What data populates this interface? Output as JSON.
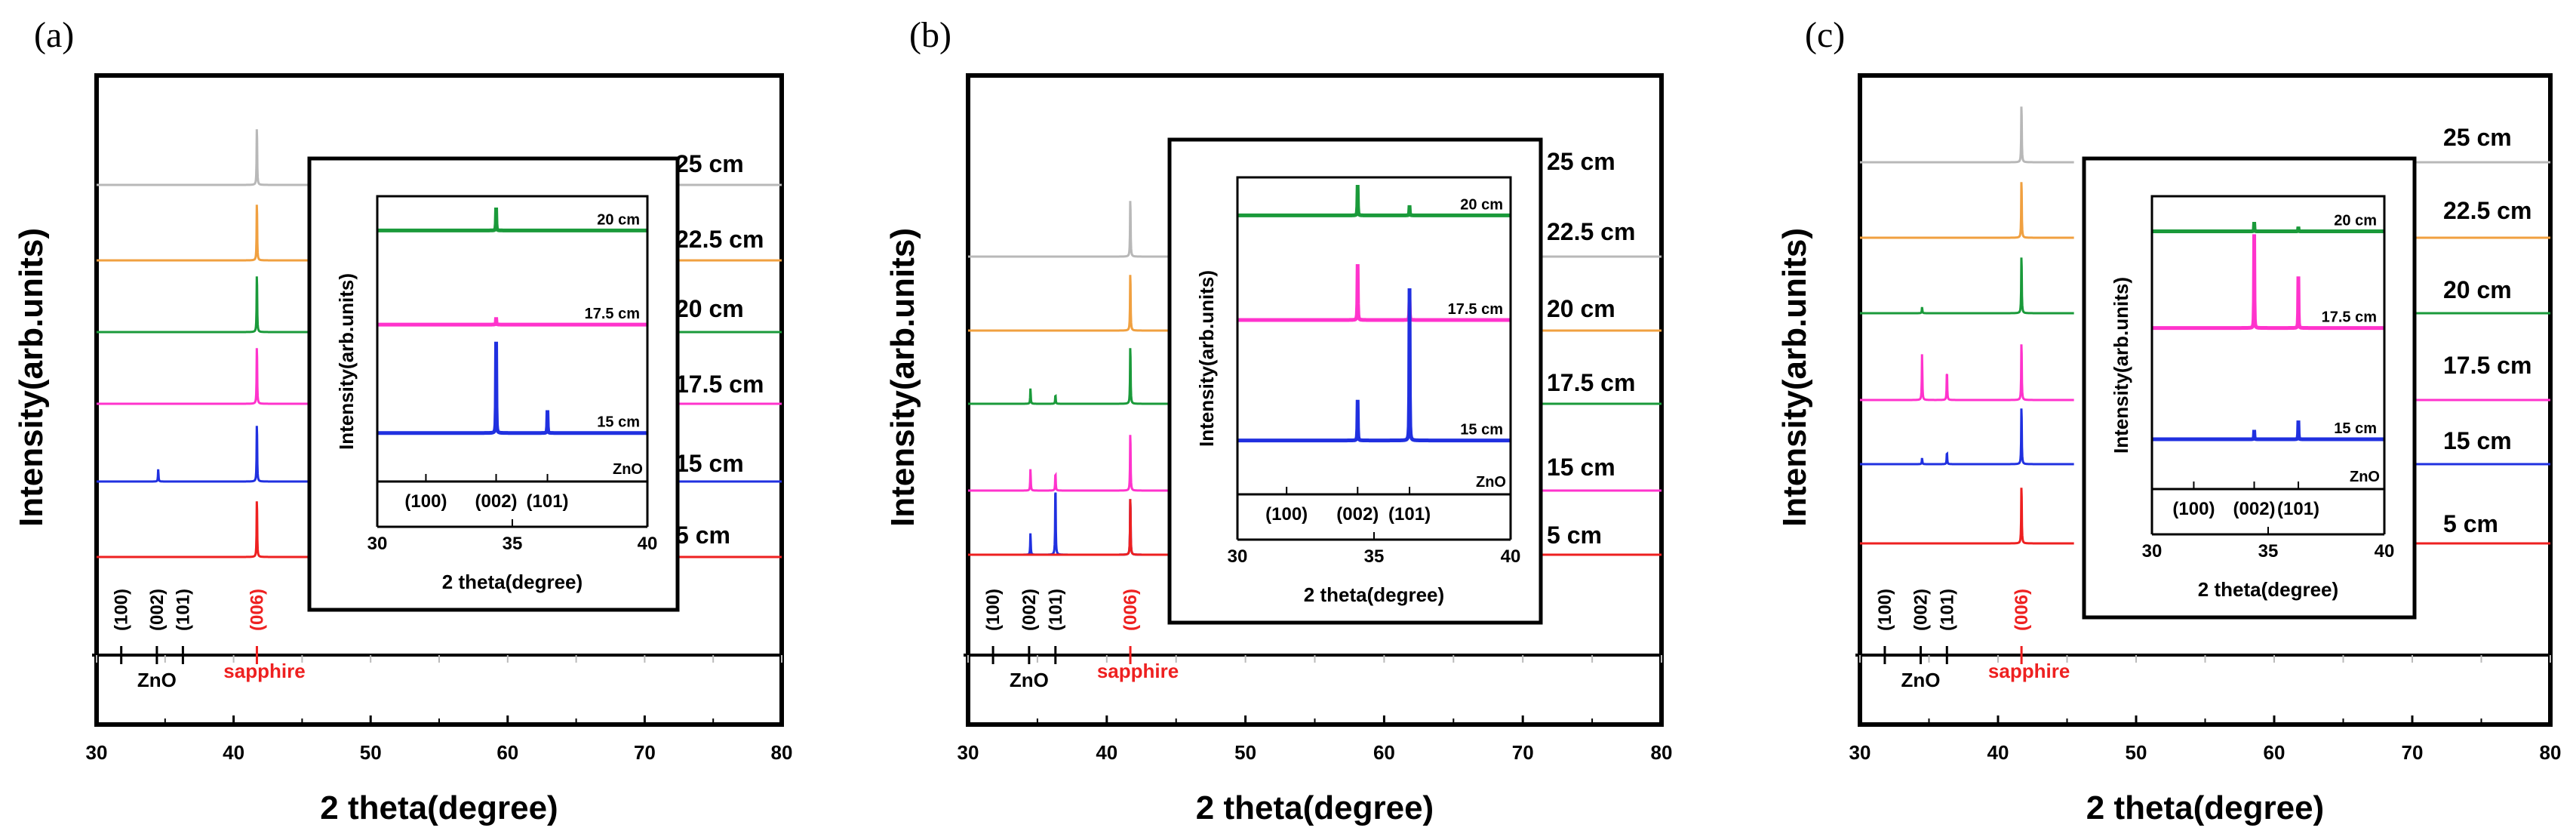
{
  "chart_data": [
    {
      "type": "line",
      "panel_label": "(a)",
      "xlabel": "2 theta(degree)",
      "ylabel": "Intensity(arb.units)",
      "xlim": [
        30,
        80
      ],
      "xticks": [
        "30",
        "40",
        "50",
        "60",
        "70",
        "80"
      ],
      "series": [
        {
          "name": "25  cm",
          "color": "#b8b8b8",
          "peaks": [
            {
              "x": 41.7,
              "h": 1.0
            }
          ]
        },
        {
          "name": "22.5 cm",
          "color": "#f0a040",
          "peaks": [
            {
              "x": 41.7,
              "h": 1.0
            }
          ]
        },
        {
          "name": "20  cm",
          "color": "#1a9a3a",
          "peaks": [
            {
              "x": 41.7,
              "h": 1.0
            }
          ]
        },
        {
          "name": "17.5 cm",
          "color": "#ff33cc",
          "peaks": [
            {
              "x": 41.7,
              "h": 1.0
            }
          ]
        },
        {
          "name": "15  cm",
          "color": "#2030e0",
          "peaks": [
            {
              "x": 34.5,
              "h": 0.2
            },
            {
              "x": 41.7,
              "h": 1.0
            }
          ]
        },
        {
          "name": "5  cm",
          "color": "#ee2020",
          "peaks": [
            {
              "x": 41.7,
              "h": 1.0
            }
          ]
        }
      ],
      "reference": {
        "zno_label": "ZnO",
        "sapphire_label": "sapphire",
        "peaks": [
          {
            "label": "(100)",
            "x": 31.8,
            "material": "ZnO"
          },
          {
            "label": "(002)",
            "x": 34.4,
            "material": "ZnO"
          },
          {
            "label": "(101)",
            "x": 36.3,
            "material": "ZnO"
          },
          {
            "label": "(006)",
            "x": 41.7,
            "material": "sapphire"
          }
        ]
      },
      "inset": {
        "xlabel": "2 theta(degree)",
        "ylabel": "Intensity(arb.units)",
        "xlim": [
          30,
          40
        ],
        "xticks": [
          "30",
          "35",
          "40"
        ],
        "hkl": [
          "(100)",
          "(002)",
          "(101)"
        ],
        "zno_label": "ZnO",
        "series": [
          {
            "name": "20 cm",
            "color": "#1a9a3a",
            "peaks": [
              {
                "x": 34.4,
                "h": 0.25
              }
            ]
          },
          {
            "name": "17.5 cm",
            "color": "#ff33cc",
            "peaks": [
              {
                "x": 34.4,
                "h": 0.08
              }
            ]
          },
          {
            "name": "15 cm",
            "color": "#2030e0",
            "peaks": [
              {
                "x": 34.4,
                "h": 1.0
              },
              {
                "x": 36.3,
                "h": 0.25
              }
            ]
          }
        ]
      }
    },
    {
      "type": "line",
      "panel_label": "(b)",
      "xlabel": "2 theta(degree)",
      "ylabel": "Intensity(arb.units)",
      "xlim": [
        30,
        80
      ],
      "xticks": [
        "30",
        "40",
        "50",
        "60",
        "70",
        "80"
      ],
      "series": [
        {
          "name": "25  cm",
          "color": "#b8b8b8",
          "peaks": [
            {
              "x": 41.7,
              "h": 1.0
            }
          ]
        },
        {
          "name": "22.5 cm",
          "color": "#f0a040",
          "peaks": [
            {
              "x": 41.7,
              "h": 1.0
            }
          ]
        },
        {
          "name": "20  cm",
          "color": "#1a9a3a",
          "peaks": [
            {
              "x": 34.5,
              "h": 0.25
            },
            {
              "x": 36.3,
              "h": 0.15
            },
            {
              "x": 41.7,
              "h": 1.0
            }
          ]
        },
        {
          "name": "17.5 cm",
          "color": "#ff33cc",
          "peaks": [
            {
              "x": 34.5,
              "h": 0.35
            },
            {
              "x": 36.3,
              "h": 0.3
            },
            {
              "x": 41.7,
              "h": 1.0
            }
          ]
        },
        {
          "name": "15  cm",
          "color": "#2030e0",
          "peaks": [
            {
              "x": 34.5,
              "h": 0.35
            },
            {
              "x": 36.3,
              "h": 1.2
            },
            {
              "x": 41.7,
              "h": 1.0
            }
          ]
        },
        {
          "name": "5  cm",
          "color": "#ee2020",
          "peaks": [
            {
              "x": 41.7,
              "h": 1.0
            }
          ]
        }
      ],
      "reference": {
        "zno_label": "ZnO",
        "sapphire_label": "sapphire",
        "peaks": [
          {
            "label": "(100)",
            "x": 31.8,
            "material": "ZnO"
          },
          {
            "label": "(002)",
            "x": 34.4,
            "material": "ZnO"
          },
          {
            "label": "(101)",
            "x": 36.3,
            "material": "ZnO"
          },
          {
            "label": "(006)",
            "x": 41.7,
            "material": "sapphire"
          }
        ]
      },
      "inset": {
        "xlabel": "2 theta(degree)",
        "ylabel": "Intensity(arb.units)",
        "xlim": [
          30,
          40
        ],
        "xticks": [
          "30",
          "35",
          "40"
        ],
        "hkl": [
          "(100)",
          "(002)",
          "(101)"
        ],
        "zno_label": "ZnO",
        "series": [
          {
            "name": "20 cm",
            "color": "#1a9a3a",
            "peaks": [
              {
                "x": 34.4,
                "h": 0.3
              },
              {
                "x": 36.3,
                "h": 0.1
              }
            ]
          },
          {
            "name": "17.5 cm",
            "color": "#ff33cc",
            "peaks": [
              {
                "x": 34.4,
                "h": 0.55
              },
              {
                "x": 36.3,
                "h": 0.2
              }
            ]
          },
          {
            "name": "15 cm",
            "color": "#2030e0",
            "peaks": [
              {
                "x": 34.4,
                "h": 0.4
              },
              {
                "x": 36.3,
                "h": 1.5
              }
            ]
          }
        ]
      }
    },
    {
      "type": "line",
      "panel_label": "(c)",
      "xlabel": "2 theta(degree)",
      "ylabel": "Intensity(arb.units)",
      "xlim": [
        30,
        80
      ],
      "xticks": [
        "30",
        "40",
        "50",
        "60",
        "70",
        "80"
      ],
      "series": [
        {
          "name": "25    cm",
          "color": "#b8b8b8",
          "peaks": [
            {
              "x": 41.7,
              "h": 1.0
            }
          ]
        },
        {
          "name": "22.5 cm",
          "color": "#f0a040",
          "peaks": [
            {
              "x": 41.7,
              "h": 1.0
            }
          ]
        },
        {
          "name": "20    cm",
          "color": "#1a9a3a",
          "peaks": [
            {
              "x": 34.5,
              "h": 0.1
            },
            {
              "x": 41.7,
              "h": 1.0
            }
          ]
        },
        {
          "name": "17.5 cm",
          "color": "#ff33cc",
          "peaks": [
            {
              "x": 34.5,
              "h": 0.75
            },
            {
              "x": 36.3,
              "h": 0.5
            },
            {
              "x": 41.7,
              "h": 1.0
            }
          ]
        },
        {
          "name": "15    cm",
          "color": "#2030e0",
          "peaks": [
            {
              "x": 34.5,
              "h": 0.1
            },
            {
              "x": 36.3,
              "h": 0.2
            },
            {
              "x": 41.7,
              "h": 1.0
            }
          ]
        },
        {
          "name": "5    cm",
          "color": "#ee2020",
          "peaks": [
            {
              "x": 41.7,
              "h": 1.0
            }
          ]
        }
      ],
      "reference": {
        "zno_label": "ZnO",
        "sapphire_label": "sapphire",
        "peaks": [
          {
            "label": "(100)",
            "x": 31.8,
            "material": "ZnO"
          },
          {
            "label": "(002)",
            "x": 34.4,
            "material": "ZnO"
          },
          {
            "label": "(101)",
            "x": 36.3,
            "material": "ZnO"
          },
          {
            "label": "(006)",
            "x": 41.7,
            "material": "sapphire"
          }
        ]
      },
      "inset": {
        "xlabel": "2 theta(degree)",
        "ylabel": "Intensity(arb.units)",
        "xlim": [
          30,
          40
        ],
        "xticks": [
          "30",
          "35",
          "40"
        ],
        "hkl": [
          "(100)",
          "(002)",
          "(101)"
        ],
        "zno_label": "ZnO",
        "series": [
          {
            "name": "20 cm",
            "color": "#1a9a3a",
            "peaks": [
              {
                "x": 34.4,
                "h": 0.1
              },
              {
                "x": 36.3,
                "h": 0.05
              }
            ]
          },
          {
            "name": "17.5 cm",
            "color": "#ff33cc",
            "peaks": [
              {
                "x": 34.4,
                "h": 1.0
              },
              {
                "x": 36.3,
                "h": 0.55
              }
            ]
          },
          {
            "name": "15 cm",
            "color": "#2030e0",
            "peaks": [
              {
                "x": 34.4,
                "h": 0.1
              },
              {
                "x": 36.3,
                "h": 0.2
              }
            ]
          }
        ]
      }
    }
  ]
}
